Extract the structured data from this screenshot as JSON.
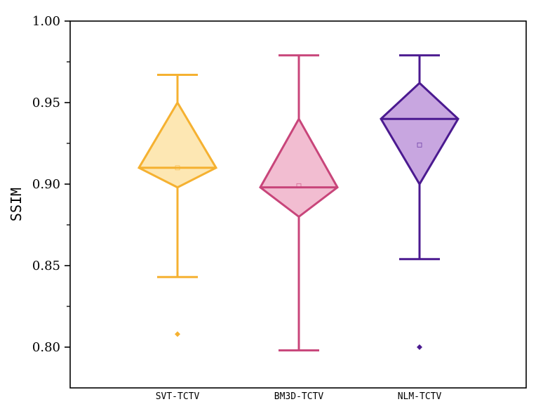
{
  "chart_data": {
    "type": "box",
    "title": "",
    "xlabel": "",
    "ylabel": "SSIM",
    "ylim": [
      0.775,
      1.0
    ],
    "yticks": [
      "0.80",
      "0.85",
      "0.90",
      "0.95",
      "1.00"
    ],
    "ytick_values": [
      0.8,
      0.85,
      0.9,
      0.95,
      1.0
    ],
    "categories": [
      "SVT-TCTV",
      "BM3D-TCTV",
      "NLM-TCTV"
    ],
    "grid": false,
    "series": [
      {
        "category": "SVT-TCTV",
        "whisker_low": 0.843,
        "q1": 0.898,
        "median": 0.91,
        "q3": 0.95,
        "whisker_high": 0.967,
        "mean": 0.91,
        "outliers": [
          0.808
        ],
        "stroke": "#F5B131",
        "fill": "#FDE7B3"
      },
      {
        "category": "BM3D-TCTV",
        "whisker_low": 0.798,
        "q1": 0.88,
        "median": 0.898,
        "q3": 0.94,
        "whisker_high": 0.979,
        "mean": 0.899,
        "outliers": [],
        "stroke": "#C8457A",
        "fill": "#F2BDD1"
      },
      {
        "category": "NLM-TCTV",
        "whisker_low": 0.854,
        "q1": 0.9,
        "median": 0.94,
        "q3": 0.962,
        "whisker_high": 0.979,
        "mean": 0.924,
        "outliers": [
          0.8
        ],
        "stroke": "#4B1A90",
        "fill": "#C8A6E0"
      }
    ]
  }
}
